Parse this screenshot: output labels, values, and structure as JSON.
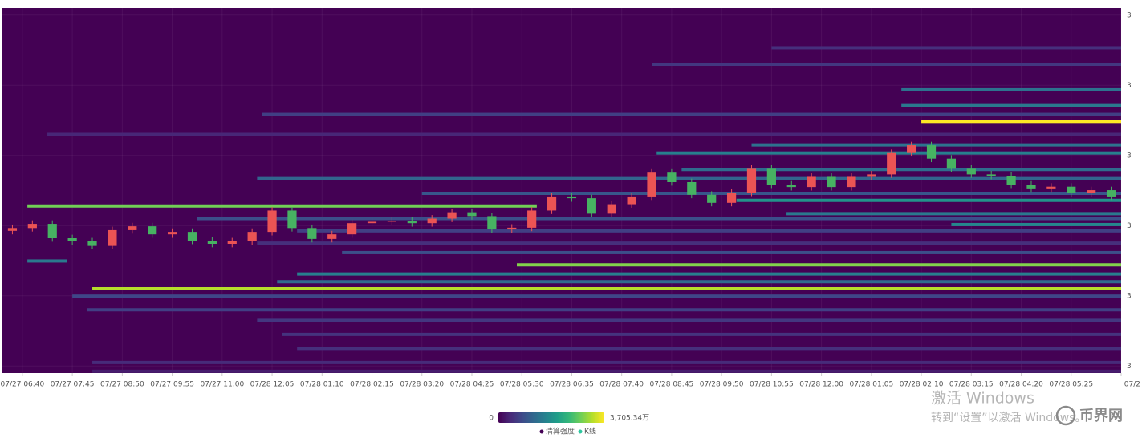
{
  "chart_data": {
    "type": "heatmap",
    "xlim": [
      -4,
      220
    ],
    "xticks": [
      {
        "value": 0,
        "label": "07/27 06:40"
      },
      {
        "value": 10,
        "label": "07/27 07:45"
      },
      {
        "value": 20,
        "label": "07/27 08:50"
      },
      {
        "value": 30,
        "label": "07/27 09:55"
      },
      {
        "value": 40,
        "label": "07/27 11:00"
      },
      {
        "value": 50,
        "label": "07/28 12:05"
      },
      {
        "value": 60,
        "label": "07/28 01:10"
      },
      {
        "value": 70,
        "label": "07/28 02:15"
      },
      {
        "value": 80,
        "label": "07/28 03:20"
      },
      {
        "value": 90,
        "label": "07/28 04:25"
      },
      {
        "value": 100,
        "label": "07/28 05:30"
      },
      {
        "value": 110,
        "label": "07/28 06:35"
      },
      {
        "value": 120,
        "label": "07/28 07:40"
      },
      {
        "value": 130,
        "label": "07/28 08:45"
      },
      {
        "value": 140,
        "label": "07/28 09:50"
      },
      {
        "value": 150,
        "label": "07/28 10:55"
      },
      {
        "value": 160,
        "label": "07/28 12:00"
      },
      {
        "value": 170,
        "label": "07/28 01:05"
      },
      {
        "value": 180,
        "label": "07/28 02:10"
      },
      {
        "value": 190,
        "label": "07/28 03:15"
      },
      {
        "value": 200,
        "label": "07/28 04:20"
      },
      {
        "value": 210,
        "label": "07/28 05:25"
      },
      {
        "value": 220,
        "label": "07/2"
      }
    ],
    "ylim": [
      3228,
      3332
    ],
    "yticks": [
      {
        "value": 3330,
        "label": "3"
      },
      {
        "value": 3310,
        "label": "3"
      },
      {
        "value": 3290,
        "label": "3"
      },
      {
        "value": 3270,
        "label": "3"
      },
      {
        "value": 3250,
        "label": "3"
      },
      {
        "value": 3230,
        "label": "3"
      }
    ],
    "grid": true,
    "colormap": [
      "#440154",
      "#482878",
      "#3e4989",
      "#31688e",
      "#26828e",
      "#1f9e89",
      "#35b779",
      "#6ece58",
      "#b5de2b",
      "#fde725"
    ],
    "visual_map": {
      "range": [
        0,
        {
          "value": 3705.34,
          "label": "3,705.34万"
        }
      ]
    },
    "series": [
      {
        "name": "清算强度",
        "color": "#440154"
      },
      {
        "name": "K线",
        "color": "#2ec7a0"
      }
    ],
    "bands": [
      {
        "price": 3299.7,
        "start": 180,
        "end": 220,
        "value": 3705.34
      },
      {
        "price": 3252.0,
        "start": 14,
        "end": 220,
        "value": 3300
      },
      {
        "price": 3258.8,
        "start": 99,
        "end": 220,
        "value": 3000
      },
      {
        "price": 3275.6,
        "start": 1,
        "end": 103,
        "value": 2900
      },
      {
        "price": 3259.9,
        "start": 1,
        "end": 9,
        "value": 1500
      },
      {
        "price": 3283.4,
        "start": 47,
        "end": 220,
        "value": 1200
      },
      {
        "price": 3286.0,
        "start": 132,
        "end": 220,
        "value": 1300
      },
      {
        "price": 3290.7,
        "start": 127,
        "end": 220,
        "value": 1600
      },
      {
        "price": 3293.0,
        "start": 146,
        "end": 220,
        "value": 1400
      },
      {
        "price": 3279.2,
        "start": 80,
        "end": 220,
        "value": 1000
      },
      {
        "price": 3277.2,
        "start": 143,
        "end": 220,
        "value": 1900
      },
      {
        "price": 3273.4,
        "start": 153,
        "end": 220,
        "value": 1500
      },
      {
        "price": 3270.3,
        "start": 186,
        "end": 220,
        "value": 1700
      },
      {
        "price": 3268.5,
        "start": 55,
        "end": 220,
        "value": 700
      },
      {
        "price": 3262.3,
        "start": 64,
        "end": 220,
        "value": 900
      },
      {
        "price": 3256.2,
        "start": 55,
        "end": 220,
        "value": 1600
      },
      {
        "price": 3254.0,
        "start": 51,
        "end": 220,
        "value": 1300
      },
      {
        "price": 3249.9,
        "start": 10,
        "end": 220,
        "value": 800
      },
      {
        "price": 3246.0,
        "start": 13,
        "end": 220,
        "value": 700
      },
      {
        "price": 3243.0,
        "start": 47,
        "end": 220,
        "value": 600
      },
      {
        "price": 3239.0,
        "start": 52,
        "end": 220,
        "value": 550
      },
      {
        "price": 3235.0,
        "start": 55,
        "end": 220,
        "value": 500
      },
      {
        "price": 3231.0,
        "start": 14,
        "end": 220,
        "value": 450
      },
      {
        "price": 3304.2,
        "start": 176,
        "end": 220,
        "value": 1500
      },
      {
        "price": 3308.7,
        "start": 176,
        "end": 220,
        "value": 1400
      },
      {
        "price": 3316.0,
        "start": 126,
        "end": 220,
        "value": 600
      },
      {
        "price": 3320.7,
        "start": 150,
        "end": 220,
        "value": 500
      },
      {
        "price": 3301.7,
        "start": 48,
        "end": 220,
        "value": 700
      },
      {
        "price": 3296.0,
        "start": 5,
        "end": 220,
        "value": 400
      },
      {
        "price": 3272.0,
        "start": 35,
        "end": 220,
        "value": 900
      },
      {
        "price": 3265.0,
        "start": 47,
        "end": 220,
        "value": 500
      },
      {
        "price": 3228.5,
        "start": 14,
        "end": 220,
        "value": 300
      }
    ],
    "candles": {
      "up_color": "#eb5454",
      "down_color": "#47b262",
      "x": [
        -2,
        2,
        6,
        10,
        14,
        18,
        22,
        26,
        30,
        34,
        38,
        42,
        46,
        50,
        54,
        58,
        62,
        66,
        70,
        74,
        78,
        82,
        86,
        90,
        94,
        98,
        102,
        106,
        110,
        114,
        118,
        122,
        126,
        130,
        134,
        138,
        142,
        146,
        150,
        154,
        158,
        162,
        166,
        170,
        174,
        178,
        182,
        186,
        190,
        194,
        198,
        202,
        206,
        210,
        214,
        218
      ],
      "ohlc": [
        [
          3268.5,
          3270.3,
          3267.5,
          3269.3
        ],
        [
          3269.3,
          3271.5,
          3268.3,
          3270.5
        ],
        [
          3270.5,
          3271.5,
          3265.4,
          3266.4
        ],
        [
          3266.4,
          3267.4,
          3264.5,
          3265.5
        ],
        [
          3265.5,
          3266.5,
          3263.2,
          3264.2
        ],
        [
          3264.2,
          3269.7,
          3263.2,
          3268.7
        ],
        [
          3268.7,
          3270.8,
          3267.7,
          3269.8
        ],
        [
          3269.8,
          3270.8,
          3266.5,
          3267.5
        ],
        [
          3267.5,
          3269.2,
          3266.5,
          3268.2
        ],
        [
          3268.2,
          3269.2,
          3264.7,
          3265.7
        ],
        [
          3265.7,
          3266.7,
          3263.8,
          3264.8
        ],
        [
          3264.8,
          3266.5,
          3263.8,
          3265.5
        ],
        [
          3265.5,
          3269.2,
          3264.5,
          3268.2
        ],
        [
          3268.2,
          3275.3,
          3267.2,
          3274.3
        ],
        [
          3274.3,
          3275.3,
          3268.3,
          3269.3
        ],
        [
          3269.3,
          3270.3,
          3265.2,
          3266.2
        ],
        [
          3266.2,
          3268.5,
          3265.2,
          3267.5
        ],
        [
          3267.5,
          3271.7,
          3266.5,
          3270.7
        ],
        [
          3270.7,
          3272.1,
          3269.7,
          3271.1
        ],
        [
          3271.1,
          3272.4,
          3270.1,
          3271.4
        ],
        [
          3271.4,
          3272.4,
          3269.7,
          3270.7
        ],
        [
          3270.7,
          3273.0,
          3269.7,
          3272.0
        ],
        [
          3272.0,
          3274.8,
          3271.0,
          3273.8
        ],
        [
          3273.8,
          3274.8,
          3271.7,
          3272.7
        ],
        [
          3272.7,
          3273.7,
          3267.9,
          3268.9
        ],
        [
          3268.9,
          3270.4,
          3267.9,
          3269.4
        ],
        [
          3269.4,
          3275.3,
          3268.4,
          3274.3
        ],
        [
          3274.3,
          3279.3,
          3273.3,
          3278.3
        ],
        [
          3278.3,
          3279.3,
          3276.8,
          3277.8
        ],
        [
          3277.8,
          3278.8,
          3272.4,
          3273.4
        ],
        [
          3273.4,
          3277.1,
          3272.4,
          3276.1
        ],
        [
          3276.1,
          3279.3,
          3275.1,
          3278.3
        ],
        [
          3278.3,
          3286.1,
          3277.3,
          3285.1
        ],
        [
          3285.1,
          3286.1,
          3281.4,
          3282.4
        ],
        [
          3282.4,
          3283.4,
          3277.8,
          3278.8
        ],
        [
          3278.8,
          3279.8,
          3275.5,
          3276.5
        ],
        [
          3276.5,
          3280.4,
          3275.5,
          3279.4
        ],
        [
          3279.4,
          3287.2,
          3278.4,
          3286.2
        ],
        [
          3286.2,
          3287.2,
          3280.7,
          3281.7
        ],
        [
          3281.7,
          3282.7,
          3280.0,
          3281.0
        ],
        [
          3281.0,
          3284.9,
          3280.0,
          3283.9
        ],
        [
          3283.9,
          3284.9,
          3280.0,
          3281.0
        ],
        [
          3281.0,
          3284.9,
          3280.0,
          3283.9
        ],
        [
          3283.9,
          3285.6,
          3282.9,
          3284.6
        ],
        [
          3284.6,
          3291.7,
          3283.6,
          3290.7
        ],
        [
          3290.7,
          3293.9,
          3289.7,
          3292.9
        ],
        [
          3292.9,
          3293.9,
          3288.1,
          3289.1
        ],
        [
          3289.1,
          3290.1,
          3285.2,
          3286.2
        ],
        [
          3286.2,
          3287.2,
          3283.6,
          3284.6
        ],
        [
          3284.6,
          3285.6,
          3283.2,
          3284.2
        ],
        [
          3284.2,
          3285.2,
          3280.7,
          3281.7
        ],
        [
          3281.7,
          3282.7,
          3279.6,
          3280.6
        ],
        [
          3280.6,
          3282.1,
          3279.6,
          3281.1
        ],
        [
          3281.1,
          3282.1,
          3278.2,
          3279.2
        ],
        [
          3279.2,
          3281.1,
          3278.2,
          3280.1
        ],
        [
          3280.1,
          3281.1,
          3277.3,
          3278.3
        ]
      ]
    }
  },
  "watermark": {
    "line1": "激活 Windows",
    "line2": "转到“设置”以激活 Windows。",
    "brand": "币界网"
  }
}
